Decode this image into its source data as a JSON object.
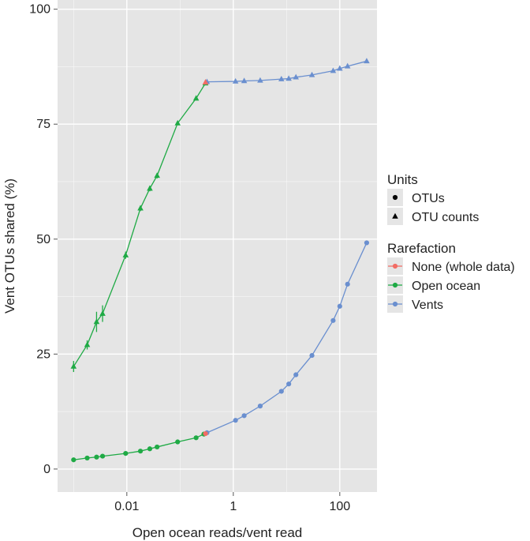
{
  "chart_data": {
    "type": "line",
    "xlabel": "Open ocean reads/vent read",
    "ylabel": "Vent OTUs shared (%)",
    "xscale": "log10",
    "xlim": [
      0.0005,
      500
    ],
    "ylim": [
      -5,
      102
    ],
    "grid": true,
    "xticks": [
      {
        "value": 0.01,
        "label": "0.01"
      },
      {
        "value": 1,
        "label": "1"
      },
      {
        "value": 100,
        "label": "100"
      }
    ],
    "yticks": [
      {
        "value": 0,
        "label": "0"
      },
      {
        "value": 25,
        "label": "25"
      },
      {
        "value": 50,
        "label": "50"
      },
      {
        "value": 75,
        "label": "75"
      },
      {
        "value": 100,
        "label": "100"
      }
    ],
    "colors": {
      "panel": "#e5e5e5",
      "grid": "#ffffff",
      "none": "#f26c64",
      "open_ocean": "#1faa45",
      "vents": "#6a8fcf",
      "legend_key": "#000000"
    },
    "legend": {
      "placement": "right",
      "units_title": "Units",
      "units": [
        {
          "label": "OTUs",
          "shape": "circle"
        },
        {
          "label": "OTU counts",
          "shape": "triangle"
        }
      ],
      "rarefaction_title": "Rarefaction",
      "rarefaction": [
        {
          "label": "None (whole data)",
          "color": "#f26c64"
        },
        {
          "label": "Open ocean",
          "color": "#1faa45"
        },
        {
          "label": "Vents",
          "color": "#6a8fcf"
        }
      ]
    },
    "series": [
      {
        "rarefaction": "Open ocean",
        "units": "OTU counts",
        "color": "#1faa45",
        "shape": "triangle",
        "x": [
          0.001,
          0.0018,
          0.0027,
          0.0035,
          0.0095,
          0.018,
          0.027,
          0.037,
          0.09,
          0.2,
          0.3
        ],
        "y": [
          22.3,
          27,
          32,
          33.8,
          46.5,
          56.7,
          61,
          63.8,
          75.2,
          80.6,
          83.9
        ],
        "err": [
          1.2,
          1.0,
          2.2,
          1.8,
          0.8,
          0.6,
          0.6,
          0.6,
          0.4,
          0.3,
          0.3
        ]
      },
      {
        "rarefaction": "Open ocean",
        "units": "OTUs",
        "color": "#1faa45",
        "shape": "circle",
        "x": [
          0.001,
          0.0018,
          0.0027,
          0.0035,
          0.0095,
          0.018,
          0.027,
          0.037,
          0.09,
          0.2,
          0.28
        ],
        "y": [
          2.0,
          2.4,
          2.6,
          2.8,
          3.4,
          3.9,
          4.4,
          4.8,
          5.9,
          6.8,
          7.6
        ]
      },
      {
        "rarefaction": "Vents",
        "units": "OTU counts",
        "color": "#6a8fcf",
        "shape": "triangle",
        "x": [
          0.32,
          1.1,
          1.6,
          3.2,
          8,
          11,
          15,
          30,
          75,
          100,
          140,
          320
        ],
        "y": [
          84.2,
          84.3,
          84.4,
          84.5,
          84.8,
          84.9,
          85.2,
          85.7,
          86.6,
          87.1,
          87.6,
          88.7
        ]
      },
      {
        "rarefaction": "Vents",
        "units": "OTUs",
        "color": "#6a8fcf",
        "shape": "circle",
        "x": [
          0.32,
          1.1,
          1.6,
          3.2,
          8,
          11,
          15,
          30,
          75,
          100,
          140,
          320
        ],
        "y": [
          7.9,
          10.6,
          11.6,
          13.7,
          16.9,
          18.5,
          20.5,
          24.7,
          32.3,
          35.4,
          40.2,
          49.2
        ]
      },
      {
        "rarefaction": "None (whole data)",
        "units": "OTU counts",
        "color": "#f26c64",
        "shape": "triangle",
        "x": [
          0.3
        ],
        "y": [
          84.1
        ]
      },
      {
        "rarefaction": "None (whole data)",
        "units": "OTUs",
        "color": "#f26c64",
        "shape": "circle",
        "x": [
          0.3
        ],
        "y": [
          7.7
        ]
      }
    ]
  }
}
